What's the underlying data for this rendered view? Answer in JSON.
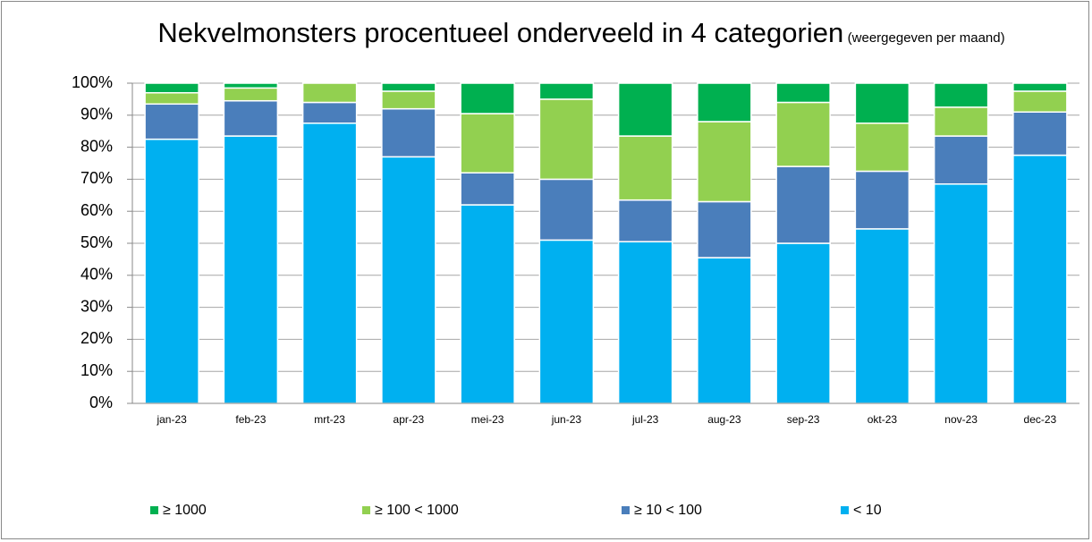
{
  "chart_data": {
    "type": "stacked_bar",
    "title": "Nekvelmonsters procentueel onderveeld in 4 categorien",
    "subtitle": "(weergegeven per maand)",
    "categories": [
      "jan-23",
      "feb-23",
      "mrt-23",
      "apr-23",
      "mei-23",
      "jun-23",
      "jul-23",
      "aug-23",
      "sep-23",
      "okt-23",
      "nov-23",
      "dec-23"
    ],
    "series": [
      {
        "name": "< 10",
        "color": "#00b0f0",
        "values": [
          82.5,
          83.5,
          87.5,
          77,
          62,
          51,
          50.5,
          45.5,
          50,
          54.5,
          68.5,
          77.5
        ]
      },
      {
        "name": "≥ 10 < 100",
        "color": "#4a7ebb",
        "values": [
          11,
          11,
          6.5,
          15,
          10,
          19,
          13,
          17.5,
          24,
          18,
          15,
          13.5
        ]
      },
      {
        "name": "≥ 100 < 1000",
        "color": "#92d050",
        "values": [
          3.5,
          4,
          6,
          5.5,
          18.5,
          25,
          20,
          25,
          20,
          15,
          9,
          6.5
        ]
      },
      {
        "name": "≥ 1000",
        "color": "#00b050",
        "values": [
          3,
          1.5,
          0,
          2.5,
          9.5,
          5,
          16.5,
          12,
          6,
          12.5,
          7.5,
          2.5
        ]
      }
    ],
    "ylim": [
      0,
      100
    ],
    "yticks": [
      {
        "value": 0,
        "label": "0%"
      },
      {
        "value": 10,
        "label": "10%"
      },
      {
        "value": 20,
        "label": "20%"
      },
      {
        "value": 30,
        "label": "30%"
      },
      {
        "value": 40,
        "label": "40%"
      },
      {
        "value": 50,
        "label": "50%"
      },
      {
        "value": 60,
        "label": "60%"
      },
      {
        "value": 70,
        "label": "70%"
      },
      {
        "value": 80,
        "label": "80%"
      },
      {
        "value": 90,
        "label": "90%"
      },
      {
        "value": 100,
        "label": "100%"
      }
    ],
    "grid": true,
    "legend": "bottom"
  }
}
